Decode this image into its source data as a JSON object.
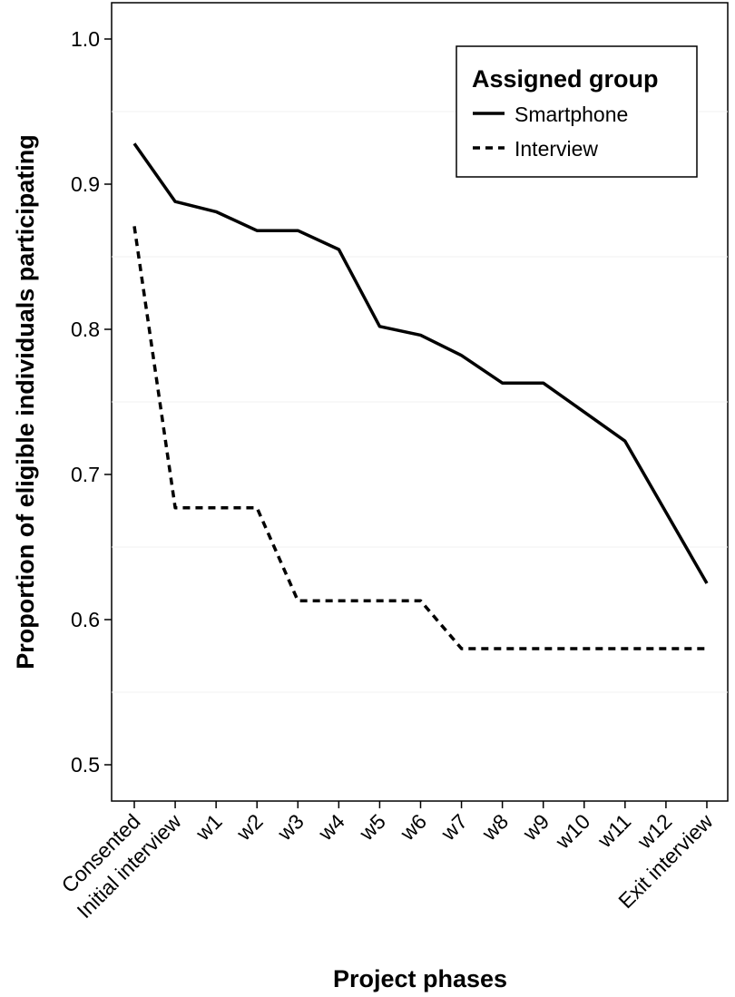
{
  "chart_data": {
    "type": "line",
    "xlabel": "Project phases",
    "ylabel": "Proportion of eligible individuals participating",
    "ylim": [
      0.47,
      1.02
    ],
    "yticks": [
      "0.5",
      "0.6",
      "0.7",
      "0.8",
      "0.9",
      "1.0"
    ],
    "grid": false,
    "legend": {
      "title": "Assigned group",
      "placement": "top-right"
    },
    "categories": [
      "Consented",
      "Initial interview",
      "w1",
      "w2",
      "w3",
      "w4",
      "w5",
      "w6",
      "w7",
      "w8",
      "w9",
      "w10",
      "w11",
      "w12",
      "Exit interview"
    ],
    "series": [
      {
        "name": "Smartphone",
        "line_style": "solid",
        "values": [
          0.928,
          0.888,
          0.881,
          0.868,
          0.868,
          0.855,
          0.802,
          0.796,
          0.782,
          0.763,
          0.763,
          0.743,
          0.723,
          0.674,
          0.625
        ]
      },
      {
        "name": "Interview",
        "line_style": "dashed",
        "points": [
          {
            "x": "Consented",
            "y": 0.871
          },
          {
            "x": "Initial interview",
            "y": 0.677
          },
          {
            "x": "w2",
            "y": 0.677
          },
          {
            "x": "w3",
            "y": 0.613
          },
          {
            "x": "w6",
            "y": 0.613
          },
          {
            "x": "w7",
            "y": 0.58
          },
          {
            "x": "Exit interview",
            "y": 0.58
          }
        ]
      }
    ]
  }
}
